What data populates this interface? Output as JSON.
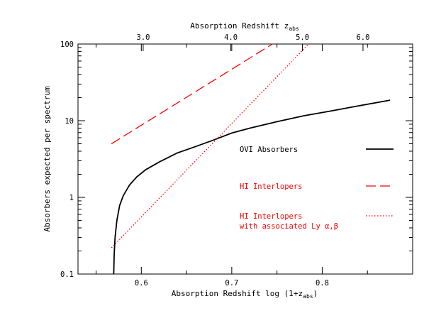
{
  "chart_data": {
    "type": "line",
    "xlabel": "Absorption Redshift log (1+z",
    "xlabel_sub": "abs",
    "xlabel_tail": ")",
    "top_xlabel": "Absorption Redshift z",
    "top_xlabel_sub": "abs",
    "ylabel": "Absorbers expected per spectrum",
    "xlim": [
      0.53,
      0.9
    ],
    "ylim": [
      0.1,
      100
    ],
    "yscale": "log",
    "x_ticks": [
      {
        "value": 0.6,
        "label": "0.6"
      },
      {
        "value": 0.7,
        "label": "0.7"
      },
      {
        "value": 0.8,
        "label": "0.8"
      }
    ],
    "x_minor_ticks": [
      0.55,
      0.65,
      0.75,
      0.85
    ],
    "y_ticks": [
      {
        "value": 0.1,
        "label": "0.1"
      },
      {
        "value": 1,
        "label": "1"
      },
      {
        "value": 10,
        "label": "10"
      },
      {
        "value": 100,
        "label": "100"
      }
    ],
    "top_ticks": [
      {
        "z": 3.0,
        "label": "3.0"
      },
      {
        "z": 4.0,
        "label": "4.0"
      },
      {
        "z": 5.0,
        "label": "5.0"
      },
      {
        "z": 6.0,
        "label": "6.0"
      }
    ],
    "series": [
      {
        "name": "OVI Absorbers",
        "color": "#000000",
        "style": "solid",
        "points": [
          [
            0.5695,
            0.1
          ],
          [
            0.57,
            0.18
          ],
          [
            0.571,
            0.3
          ],
          [
            0.573,
            0.5
          ],
          [
            0.576,
            0.78
          ],
          [
            0.58,
            1.05
          ],
          [
            0.587,
            1.45
          ],
          [
            0.595,
            1.85
          ],
          [
            0.605,
            2.3
          ],
          [
            0.62,
            2.9
          ],
          [
            0.64,
            3.8
          ],
          [
            0.66,
            4.6
          ],
          [
            0.68,
            5.6
          ],
          [
            0.7,
            6.9
          ],
          [
            0.72,
            8.0
          ],
          [
            0.75,
            9.7
          ],
          [
            0.78,
            11.6
          ],
          [
            0.81,
            13.4
          ],
          [
            0.84,
            15.6
          ],
          [
            0.875,
            18.5
          ]
        ]
      },
      {
        "name": "HI Interlopers",
        "color": "#ff0000",
        "style": "dashed",
        "points": [
          [
            0.567,
            5.0
          ],
          [
            0.745,
            100
          ]
        ]
      },
      {
        "name": "HI Interlopers with associated Ly α,β",
        "color": "#ff0000",
        "style": "dotted",
        "points": [
          [
            0.567,
            0.22
          ],
          [
            0.785,
            100
          ]
        ]
      }
    ],
    "legend": {
      "placement": "right-middle",
      "items": [
        {
          "label_lines": [
            "OVI Absorbers"
          ],
          "color": "#000000",
          "style": "solid"
        },
        {
          "label_lines": [
            "HI Interlopers"
          ],
          "color": "#ff0000",
          "style": "dashed"
        },
        {
          "label_lines": [
            "HI Interlopers",
            "with associated Ly α,β"
          ],
          "color": "#ff0000",
          "style": "dotted"
        }
      ]
    },
    "grid": false
  }
}
